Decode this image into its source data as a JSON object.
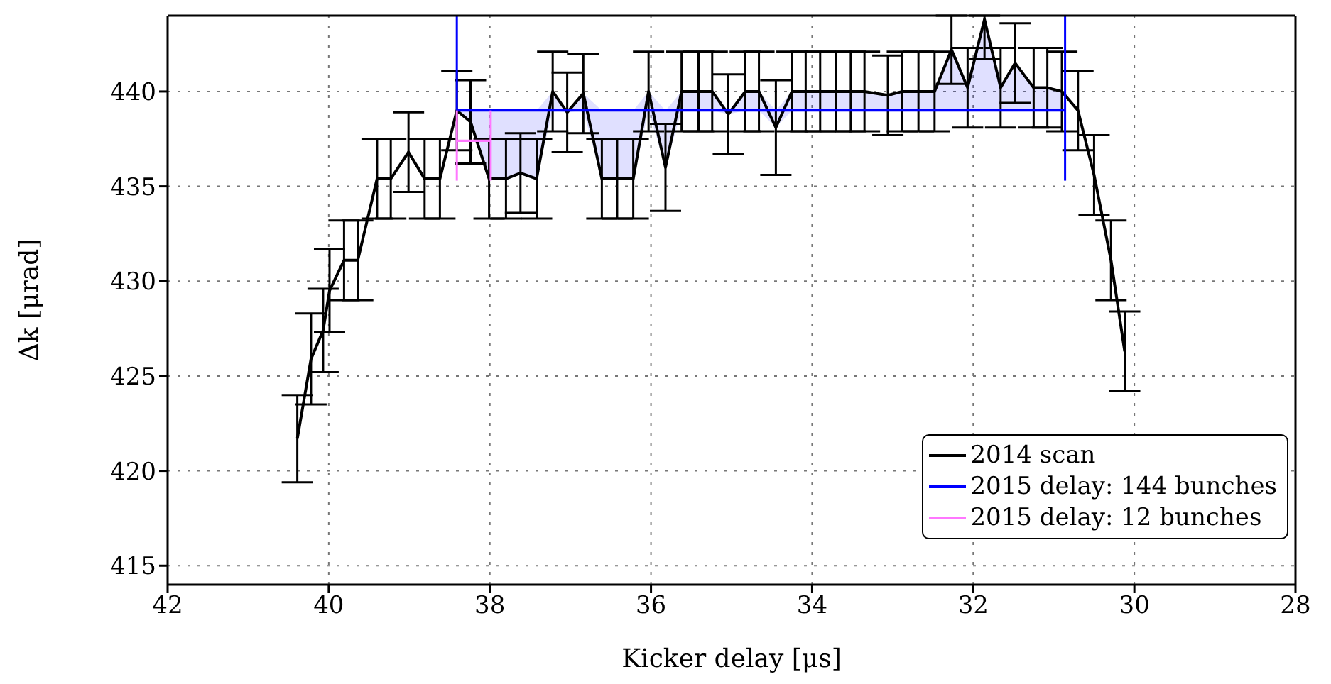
{
  "chart_data": {
    "type": "line",
    "xlabel": "Kicker delay [μs]",
    "ylabel": "Δk [μrad]",
    "xlim": [
      42,
      28
    ],
    "xticks": [
      42,
      40,
      38,
      36,
      34,
      32,
      30,
      28
    ],
    "ylim": [
      414,
      444
    ],
    "yticks": [
      415,
      420,
      425,
      430,
      435,
      440
    ],
    "grid": true,
    "legend": "bottom right",
    "marker": "none",
    "line_style": "solid",
    "series": [
      {
        "name": "2014 scan",
        "color": "#000000",
        "x": [
          40.39,
          40.22,
          40.07,
          39.99,
          39.81,
          39.64,
          39.4,
          39.23,
          39.01,
          38.81,
          38.62,
          38.41,
          38.24,
          38.01,
          37.8,
          37.62,
          37.42,
          37.22,
          37.04,
          36.84,
          36.61,
          36.42,
          36.22,
          36.03,
          35.82,
          35.62,
          35.41,
          35.24,
          35.04,
          34.83,
          34.66,
          34.45,
          34.25,
          34.08,
          33.9,
          33.7,
          33.52,
          33.35,
          33.06,
          32.88,
          32.68,
          32.48,
          32.27,
          32.07,
          31.86,
          31.66,
          31.48,
          31.25,
          31.08,
          30.9,
          30.7,
          30.5,
          30.29,
          30.12
        ],
        "values": [
          421.7,
          425.9,
          427.4,
          429.5,
          431.1,
          431.1,
          435.4,
          435.4,
          436.8,
          435.4,
          435.4,
          439,
          438.4,
          435.4,
          435.4,
          435.7,
          435.4,
          440,
          438.9,
          439.9,
          435.4,
          435.4,
          435.4,
          440,
          436,
          440,
          440,
          440,
          438.8,
          440,
          440,
          438.1,
          440,
          440,
          440,
          440,
          440,
          440,
          439.8,
          440,
          440,
          440,
          442.2,
          440.2,
          443.8,
          440.2,
          441.5,
          440.2,
          440.2,
          440,
          439,
          435.6,
          431.1,
          426.3
        ],
        "errors": [
          2.3,
          2.4,
          2.2,
          2.2,
          2.1,
          2.1,
          2.1,
          2.1,
          2.1,
          2.1,
          2.1,
          2.1,
          2.2,
          2.1,
          2.1,
          2.1,
          2.1,
          2.1,
          2.1,
          2.1,
          2.1,
          2.1,
          2.1,
          2.1,
          2.3,
          2.1,
          2.1,
          2.1,
          2.1,
          2.1,
          2.1,
          2.5,
          2.1,
          2.1,
          2.1,
          2.1,
          2.1,
          2.1,
          2.1,
          2.1,
          2.1,
          2.1,
          1.8,
          2.1,
          [
            441.7,
            444
          ],
          2.1,
          2.1,
          2.1,
          2.1,
          2.1,
          2.1,
          2.1,
          2.1,
          2.1
        ]
      },
      {
        "name": "2015 delay: 144 bunches",
        "color": "#0000ff",
        "x": [
          38.41,
          38.24,
          38.01,
          37.8,
          37.62,
          37.42,
          37.22,
          37.04,
          36.84,
          36.61,
          36.42,
          36.22,
          36.03,
          35.82,
          35.62,
          35.41,
          35.24,
          35.04,
          34.83,
          34.66,
          34.45,
          34.25,
          34.08,
          33.9,
          33.7,
          33.52,
          33.35,
          33.06,
          32.88,
          32.68,
          32.48,
          32.27,
          32.07,
          31.86,
          31.66,
          31.48,
          31.25,
          31.08,
          30.9,
          30.86
        ],
        "values": [
          439,
          439,
          439,
          439,
          439,
          439,
          439,
          439,
          439,
          439,
          439,
          439,
          439,
          439,
          439,
          439,
          439,
          439,
          439,
          439,
          439,
          439,
          439,
          439,
          439,
          439,
          439,
          439,
          439,
          439,
          439,
          439,
          439,
          439,
          439,
          439,
          439,
          439,
          439,
          439
        ],
        "lower": [
          439,
          438.4,
          435.4,
          435.4,
          435.7,
          435.4,
          439,
          438.9,
          439,
          435.4,
          435.4,
          435.4,
          439,
          436,
          439,
          439,
          439,
          438.8,
          439,
          439,
          438.1,
          439,
          439,
          439,
          439,
          439,
          439,
          439,
          439,
          439,
          439,
          439,
          439,
          439,
          439,
          439,
          439,
          439,
          439,
          439
        ],
        "upper": [
          439,
          439,
          439,
          439,
          439,
          439,
          440,
          439,
          439.9,
          439,
          439,
          439,
          440,
          439,
          440,
          440,
          440,
          439,
          440,
          440,
          439,
          440,
          440,
          440,
          440,
          440,
          440,
          439.8,
          440,
          440,
          440,
          442.2,
          440.2,
          443.8,
          440.2,
          441.5,
          440.2,
          440.2,
          440,
          439
        ],
        "errors": [
          [
            439,
            444
          ],
          null,
          null,
          null,
          null,
          null,
          null,
          null,
          null,
          null,
          null,
          null,
          null,
          null,
          null,
          null,
          null,
          null,
          null,
          null,
          null,
          null,
          null,
          null,
          null,
          null,
          null,
          null,
          null,
          null,
          null,
          null,
          null,
          null,
          null,
          null,
          null,
          null,
          null,
          [
            435.3,
            444
          ]
        ]
      },
      {
        "name": "2015 delay: 12 bunches",
        "color": "#ff77ff",
        "x": [
          38.41,
          37.99
        ],
        "values": [
          437.4,
          437.4
        ],
        "errors": [
          [
            435.3,
            439
          ],
          [
            435.3,
            439
          ]
        ]
      }
    ]
  }
}
